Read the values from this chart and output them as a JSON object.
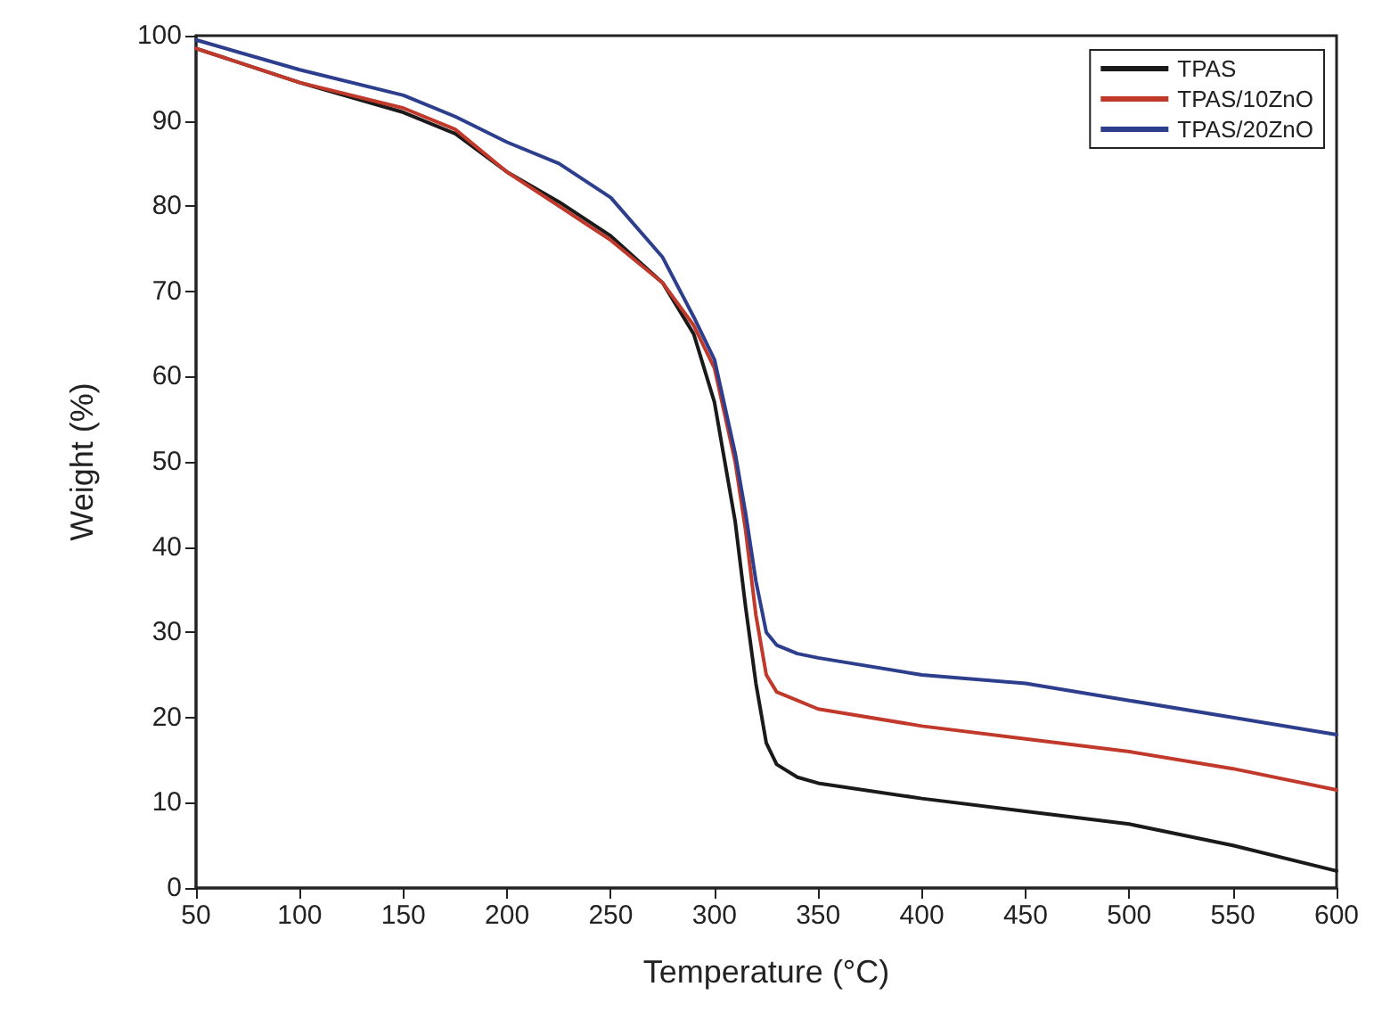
{
  "chart_data": {
    "type": "line",
    "xlabel": "Temperature (°C)",
    "ylabel": "Weight (%)",
    "xlim": [
      50,
      600
    ],
    "xticks": [
      50,
      100,
      150,
      200,
      250,
      300,
      350,
      400,
      450,
      500,
      550,
      600
    ],
    "ylim": [
      0,
      100
    ],
    "yticks": [
      0,
      10,
      20,
      30,
      40,
      50,
      60,
      70,
      80,
      90,
      100
    ],
    "grid": false,
    "legend": "top right",
    "marker": "none",
    "line_style": "solid",
    "x": [
      50,
      100,
      150,
      175,
      200,
      225,
      250,
      275,
      290,
      300,
      310,
      315,
      320,
      325,
      330,
      340,
      350,
      400,
      450,
      500,
      550,
      600
    ],
    "series": [
      {
        "name": "TPAS",
        "color": "#1a1a1a",
        "values": [
          98.5,
          94.5,
          91,
          88.5,
          84,
          80.5,
          76.5,
          71,
          65,
          57,
          43,
          33,
          24,
          17,
          14.5,
          13,
          12.3,
          10.5,
          9,
          7.5,
          5,
          2
        ]
      },
      {
        "name": "TPAS/10ZnO",
        "color": "#c0392b",
        "values": [
          98.5,
          94.5,
          91.5,
          89,
          84,
          80,
          76,
          71,
          66,
          61,
          50,
          42,
          32,
          25,
          23,
          22,
          21,
          19,
          17.5,
          16,
          14,
          11.5
        ]
      },
      {
        "name": "TPAS/20ZnO",
        "color": "#2c3e8c",
        "values": [
          99.5,
          96,
          93,
          90.5,
          87.5,
          85,
          81,
          74,
          67,
          62,
          51,
          44,
          36,
          30,
          28.5,
          27.5,
          27,
          25,
          24,
          22,
          20,
          18
        ]
      }
    ]
  }
}
